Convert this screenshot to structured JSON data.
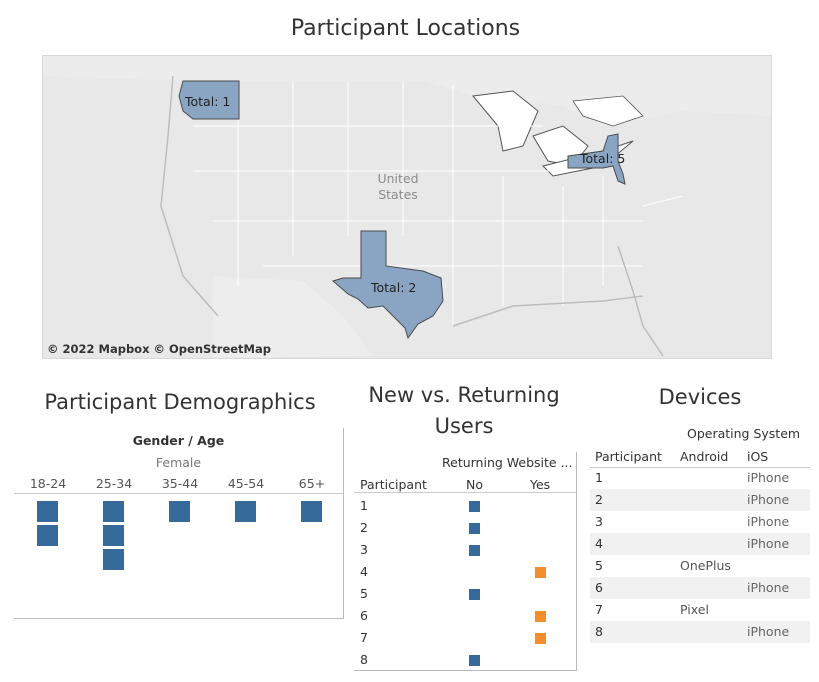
{
  "map": {
    "title": "Participant Locations",
    "country_label_line1": "United",
    "country_label_line2": "States",
    "credit": "© 2022 Mapbox  © OpenStreetMap",
    "region_color": "#8aa5c3",
    "states": [
      {
        "name": "Washington",
        "label": "Total: 1",
        "total": 1
      },
      {
        "name": "Texas",
        "label": "Total: 2",
        "total": 2
      },
      {
        "name": "New York",
        "label": "Total: 5",
        "total": 5
      }
    ]
  },
  "demographics": {
    "title": "Participant Demographics",
    "group_header": "Gender / Age",
    "gender": "Female",
    "square_color": "#356a9b",
    "age_groups": [
      {
        "label": "18-24",
        "count": 2
      },
      {
        "label": "25-34",
        "count": 3
      },
      {
        "label": "35-44",
        "count": 1
      },
      {
        "label": "45-54",
        "count": 1
      },
      {
        "label": "65+",
        "count": 1
      }
    ]
  },
  "returning": {
    "title_line1": "New vs. Returning",
    "title_line2": "Users",
    "group_header": "Returning Website ...",
    "row_header": "Participant",
    "col_no": "No",
    "col_yes": "Yes",
    "color_no": "#356a9b",
    "color_yes": "#f28e2b",
    "rows": [
      {
        "participant": "1",
        "returning": "No"
      },
      {
        "participant": "2",
        "returning": "No"
      },
      {
        "participant": "3",
        "returning": "No"
      },
      {
        "participant": "4",
        "returning": "Yes"
      },
      {
        "participant": "5",
        "returning": "No"
      },
      {
        "participant": "6",
        "returning": "Yes"
      },
      {
        "participant": "7",
        "returning": "Yes"
      },
      {
        "participant": "8",
        "returning": "No"
      }
    ]
  },
  "devices": {
    "title": "Devices",
    "group_header": "Operating System",
    "row_header": "Participant",
    "col_android": "Android",
    "col_ios": "iOS",
    "rows": [
      {
        "participant": "1",
        "android": "",
        "ios": "iPhone"
      },
      {
        "participant": "2",
        "android": "",
        "ios": "iPhone"
      },
      {
        "participant": "3",
        "android": "",
        "ios": "iPhone"
      },
      {
        "participant": "4",
        "android": "",
        "ios": "iPhone"
      },
      {
        "participant": "5",
        "android": "OnePlus",
        "ios": ""
      },
      {
        "participant": "6",
        "android": "",
        "ios": "iPhone"
      },
      {
        "participant": "7",
        "android": "Pixel",
        "ios": ""
      },
      {
        "participant": "8",
        "android": "",
        "ios": "iPhone"
      }
    ]
  }
}
